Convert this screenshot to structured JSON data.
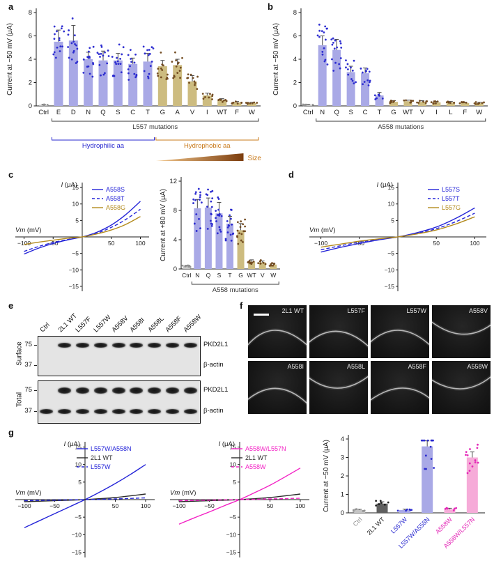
{
  "panel_letters": {
    "a": "a",
    "b": "b",
    "c": "c",
    "d": "d",
    "e": "e",
    "f": "f",
    "g": "g"
  },
  "colors": {
    "hydrophilic_bar": "#a9a9e6",
    "hydrophilic_dot": "#2525cf",
    "hydrophobic_bar": "#cdbc80",
    "hydrophobic_dot": "#70481c",
    "ctrl_bar": "#c4c4c4",
    "ctrl_dot": "#8f8f8f",
    "wt_bar": "#5f5f5f",
    "wt_dot": "#161616",
    "magenta_bar": "#f6abd8",
    "magenta_dot": "#e321b5",
    "blue_line": "#2525d8",
    "tan_line": "#b38b1e",
    "black_line": "#2b2b2b",
    "magenta_line": "#f321c4",
    "bracket_dark": "#3a3a3a",
    "hydrophilic_text": "#2525cf",
    "hydrophobic_text": "#c8791a",
    "wedge_light": "#f4c98e",
    "wedge_dark": "#7c3d0e"
  },
  "chart_data": [
    {
      "id": "a",
      "type": "bar",
      "ylabel": "Current at −50 mV (μA)",
      "ylim": [
        0,
        8
      ],
      "yticks": [
        0,
        2,
        4,
        6,
        8
      ],
      "seed": 11,
      "categories": [
        "Ctrl",
        "E",
        "D",
        "N",
        "Q",
        "S",
        "C",
        "T",
        "G",
        "A",
        "V",
        "I",
        "WT",
        "F",
        "W"
      ],
      "values": [
        0.1,
        5.5,
        5.6,
        4.0,
        3.9,
        3.9,
        3.6,
        3.8,
        3.4,
        3.5,
        2.1,
        0.9,
        0.5,
        0.3,
        0.25
      ],
      "errors": [
        0.05,
        1.0,
        1.3,
        0.6,
        0.8,
        0.6,
        0.5,
        0.7,
        0.5,
        0.5,
        0.5,
        0.2,
        0.12,
        0.08,
        0.06
      ],
      "palette": [
        "ctrl",
        "hydrophilic",
        "hydrophilic",
        "hydrophilic",
        "hydrophilic",
        "hydrophilic",
        "hydrophilic",
        "hydrophilic",
        "hydrophobic",
        "hydrophobic",
        "hydrophobic",
        "hydrophobic",
        "hydrophobic",
        "hydrophobic",
        "hydrophobic"
      ],
      "annotations": [
        {
          "type": "bracket",
          "from": 1,
          "to": 14,
          "label": "L557 mutations",
          "color": "bracket_dark",
          "row": 0
        },
        {
          "type": "bracket",
          "from": 1,
          "to": 7,
          "label": "Hydrophilic aa",
          "color": "hydrophilic_text",
          "row": 1
        },
        {
          "type": "bracket",
          "from": 8,
          "to": 14,
          "label": "Hydrophobic aa",
          "color": "hydrophobic_text",
          "row": 1
        },
        {
          "type": "wedge",
          "from": 8,
          "to": 13,
          "label": "Size",
          "row": 2
        }
      ]
    },
    {
      "id": "b",
      "type": "bar",
      "ylabel": "Current at −50 mV (μA)",
      "ylim": [
        0,
        8
      ],
      "yticks": [
        0,
        2,
        4,
        6,
        8
      ],
      "seed": 23,
      "categories": [
        "Ctrl",
        "N",
        "Q",
        "S",
        "C",
        "T",
        "G",
        "WT",
        "V",
        "I",
        "L",
        "F",
        "W"
      ],
      "values": [
        0.1,
        5.2,
        4.8,
        2.9,
        2.8,
        0.9,
        0.35,
        0.4,
        0.35,
        0.3,
        0.3,
        0.25,
        0.25
      ],
      "errors": [
        0.04,
        0.8,
        0.9,
        0.5,
        0.45,
        0.25,
        0.1,
        0.1,
        0.1,
        0.08,
        0.08,
        0.06,
        0.06
      ],
      "palette": [
        "ctrl",
        "hydrophilic",
        "hydrophilic",
        "hydrophilic",
        "hydrophilic",
        "hydrophilic",
        "hydrophobic",
        "hydrophobic",
        "hydrophobic",
        "hydrophobic",
        "hydrophobic",
        "hydrophobic",
        "hydrophobic"
      ],
      "annotations": [
        {
          "type": "bracket",
          "from": 1,
          "to": 12,
          "label": "A558 mutations",
          "color": "bracket_dark",
          "row": 0
        }
      ]
    },
    {
      "id": "c_iv",
      "type": "line",
      "xlabel": "Vm (mV)",
      "ylabel": "I (μA)",
      "xlim": [
        -115,
        115
      ],
      "ylim": [
        -16.5,
        16.5
      ],
      "xticks": [
        -100,
        -50,
        50,
        100
      ],
      "yticks": [
        -15,
        -10,
        -5,
        5,
        10,
        15
      ],
      "series": [
        {
          "name": "A558S",
          "color": "blue_line",
          "dash": false,
          "points": [
            [
              -100,
              -5.2
            ],
            [
              -75,
              -3.4
            ],
            [
              -50,
              -2.0
            ],
            [
              -25,
              -0.9
            ],
            [
              0,
              0
            ],
            [
              25,
              1.4
            ],
            [
              50,
              3.6
            ],
            [
              75,
              6.8
            ],
            [
              100,
              10.8
            ]
          ]
        },
        {
          "name": "A558T",
          "color": "blue_line",
          "dash": true,
          "points": [
            [
              -100,
              -4.4
            ],
            [
              -75,
              -2.9
            ],
            [
              -50,
              -1.7
            ],
            [
              -25,
              -0.8
            ],
            [
              0,
              0
            ],
            [
              25,
              1.1
            ],
            [
              50,
              2.9
            ],
            [
              75,
              5.3
            ],
            [
              100,
              8.4
            ]
          ]
        },
        {
          "name": "A558G",
          "color": "tan_line",
          "dash": false,
          "points": [
            [
              -100,
              -2.3
            ],
            [
              -75,
              -1.6
            ],
            [
              -50,
              -1.0
            ],
            [
              -25,
              -0.4
            ],
            [
              0,
              0
            ],
            [
              25,
              0.9
            ],
            [
              50,
              2.1
            ],
            [
              75,
              3.8
            ],
            [
              100,
              6.2
            ]
          ]
        }
      ]
    },
    {
      "id": "c_bar",
      "type": "bar",
      "ylabel": "Current at +80 mV (μA)",
      "ylim": [
        0,
        12
      ],
      "yticks": [
        0,
        4,
        8,
        12
      ],
      "seed": 31,
      "categories": [
        "Ctrl",
        "N",
        "Q",
        "S",
        "T",
        "G",
        "WT",
        "V",
        "W"
      ],
      "values": [
        0.4,
        8.3,
        8.4,
        7.6,
        6.2,
        5.3,
        1.0,
        0.9,
        0.6
      ],
      "errors": [
        0.1,
        1.2,
        1.3,
        1.5,
        1.0,
        0.9,
        0.25,
        0.2,
        0.15
      ],
      "palette": [
        "ctrl",
        "hydrophilic",
        "hydrophilic",
        "hydrophilic",
        "hydrophilic",
        "hydrophobic",
        "hydrophobic",
        "hydrophobic",
        "hydrophobic"
      ],
      "annotations": [
        {
          "type": "bracket",
          "from": 1,
          "to": 8,
          "label": "A558 mutations",
          "color": "bracket_dark",
          "row": 0
        }
      ]
    },
    {
      "id": "d_iv",
      "type": "line",
      "xlabel": "Vm (mV)",
      "ylabel": "I (μA)",
      "xlim": [
        -115,
        115
      ],
      "ylim": [
        -16.5,
        16.5
      ],
      "xticks": [
        -100,
        -50,
        50,
        100
      ],
      "yticks": [
        -15,
        -10,
        -5,
        5,
        10,
        15
      ],
      "series": [
        {
          "name": "L557S",
          "color": "blue_line",
          "dash": false,
          "points": [
            [
              -100,
              -4.6
            ],
            [
              -75,
              -3.2
            ],
            [
              -50,
              -2.0
            ],
            [
              -25,
              -0.9
            ],
            [
              0,
              0
            ],
            [
              25,
              1.3
            ],
            [
              50,
              3.0
            ],
            [
              75,
              5.6
            ],
            [
              100,
              8.8
            ]
          ]
        },
        {
          "name": "L557T",
          "color": "blue_line",
          "dash": true,
          "points": [
            [
              -100,
              -3.9
            ],
            [
              -75,
              -2.7
            ],
            [
              -50,
              -1.6
            ],
            [
              -25,
              -0.8
            ],
            [
              0,
              0
            ],
            [
              25,
              1.1
            ],
            [
              50,
              2.5
            ],
            [
              75,
              4.6
            ],
            [
              100,
              7.2
            ]
          ]
        },
        {
          "name": "L557G",
          "color": "tan_line",
          "dash": false,
          "points": [
            [
              -100,
              -3.1
            ],
            [
              -75,
              -2.2
            ],
            [
              -50,
              -1.3
            ],
            [
              -25,
              -0.6
            ],
            [
              0,
              0
            ],
            [
              25,
              0.9
            ],
            [
              50,
              2.1
            ],
            [
              75,
              3.9
            ],
            [
              100,
              6.1
            ]
          ]
        }
      ]
    },
    {
      "id": "g1_iv",
      "type": "line",
      "xlabel": "Vm (mV)",
      "ylabel": "I (μA)",
      "xlim": [
        -115,
        115
      ],
      "ylim": [
        -16.5,
        16.5
      ],
      "xticks": [
        -100,
        -50,
        50,
        100
      ],
      "yticks": [
        -15,
        -10,
        -5,
        5,
        10,
        15
      ],
      "series": [
        {
          "name": "L557W/A558N",
          "color": "blue_line",
          "dash": false,
          "points": [
            [
              -100,
              -8.0
            ],
            [
              -75,
              -6.0
            ],
            [
              -50,
              -4.0
            ],
            [
              -25,
              -2.0
            ],
            [
              0,
              0
            ],
            [
              25,
              2.2
            ],
            [
              50,
              4.6
            ],
            [
              75,
              7.2
            ],
            [
              100,
              10.0
            ]
          ]
        },
        {
          "name": "2L1 WT",
          "color": "black_line",
          "dash": false,
          "points": [
            [
              -100,
              -0.6
            ],
            [
              -50,
              -0.3
            ],
            [
              0,
              0
            ],
            [
              50,
              0.6
            ],
            [
              100,
              1.6
            ]
          ]
        },
        {
          "name": "L557W",
          "color": "blue_line",
          "dash": true,
          "points": [
            [
              -100,
              -0.3
            ],
            [
              -50,
              -0.15
            ],
            [
              0,
              0
            ],
            [
              50,
              0.2
            ],
            [
              100,
              0.5
            ]
          ]
        }
      ]
    },
    {
      "id": "g2_iv",
      "type": "line",
      "xlabel": "Vm (mV)",
      "ylabel": "I (μA)",
      "xlim": [
        -115,
        115
      ],
      "ylim": [
        -16.5,
        16.5
      ],
      "xticks": [
        -100,
        -50,
        50,
        100
      ],
      "yticks": [
        -15,
        -10,
        -5,
        5,
        10,
        15
      ],
      "series": [
        {
          "name": "A558W/L557N",
          "color": "magenta_line",
          "dash": false,
          "points": [
            [
              -100,
              -7.0
            ],
            [
              -75,
              -5.2
            ],
            [
              -50,
              -3.5
            ],
            [
              -25,
              -1.7
            ],
            [
              0,
              0
            ],
            [
              25,
              2.0
            ],
            [
              50,
              4.1
            ],
            [
              75,
              6.5
            ],
            [
              100,
              9.0
            ]
          ]
        },
        {
          "name": "2L1 WT",
          "color": "black_line",
          "dash": false,
          "points": [
            [
              -100,
              -0.6
            ],
            [
              -50,
              -0.3
            ],
            [
              0,
              0
            ],
            [
              50,
              0.6
            ],
            [
              100,
              1.6
            ]
          ]
        },
        {
          "name": "A558W",
          "color": "magenta_line",
          "dash": true,
          "points": [
            [
              -100,
              -0.3
            ],
            [
              -50,
              -0.15
            ],
            [
              0,
              0
            ],
            [
              50,
              0.2
            ],
            [
              100,
              0.4
            ]
          ]
        }
      ]
    },
    {
      "id": "g_bar",
      "type": "bar",
      "ylabel": "Current at −50 mV (μA)",
      "ylim": [
        0,
        4
      ],
      "yticks": [
        0,
        1,
        2,
        3,
        4
      ],
      "seed": 43,
      "categories": [
        "Ctrl",
        "2L1 WT",
        "L557W",
        "L557W/A558N",
        "A558W",
        "A558W/L557N"
      ],
      "values": [
        0.15,
        0.5,
        0.15,
        3.6,
        0.2,
        3.0
      ],
      "errors": [
        0.04,
        0.1,
        0.05,
        0.3,
        0.05,
        0.3
      ],
      "palette": [
        "ctrl",
        "wt",
        "hydrophilic",
        "hydrophilic",
        "magenta",
        "magenta"
      ],
      "label_colors": [
        "#8f8f8f",
        "#1a1a1a",
        "#2525cf",
        "#2525cf",
        "#e321b5",
        "#e321b5"
      ],
      "annotations": []
    }
  ],
  "blot": {
    "lanes": [
      "Ctrl",
      "2L1 WT",
      "L557F",
      "L557W",
      "A558V",
      "A558I",
      "A558L",
      "A558F",
      "A558W"
    ],
    "groups": [
      {
        "name": "Surface",
        "rows": [
          {
            "protein": "PKD2L1",
            "marker": "75",
            "bands": [
              0,
              1,
              1,
              1,
              1,
              1,
              1,
              1,
              1
            ]
          },
          {
            "protein": "β-actin",
            "marker": "37",
            "bands": [
              0,
              0,
              0,
              0,
              0,
              0,
              0,
              0,
              0
            ]
          }
        ]
      },
      {
        "name": "Total",
        "rows": [
          {
            "protein": "PKD2L1",
            "marker": "75",
            "bands": [
              0,
              1,
              1,
              1,
              1,
              1,
              1,
              1,
              1
            ]
          },
          {
            "protein": "β-actin",
            "marker": "37",
            "bands": [
              1,
              1,
              1,
              1,
              1,
              1,
              1,
              1,
              1
            ]
          }
        ]
      }
    ]
  },
  "microscopy": {
    "tiles": [
      "2L1 WT",
      "L557F",
      "L557W",
      "A558V",
      "A558I",
      "A558L",
      "A558F",
      "A558W"
    ],
    "scale_bar_tile": 0
  }
}
